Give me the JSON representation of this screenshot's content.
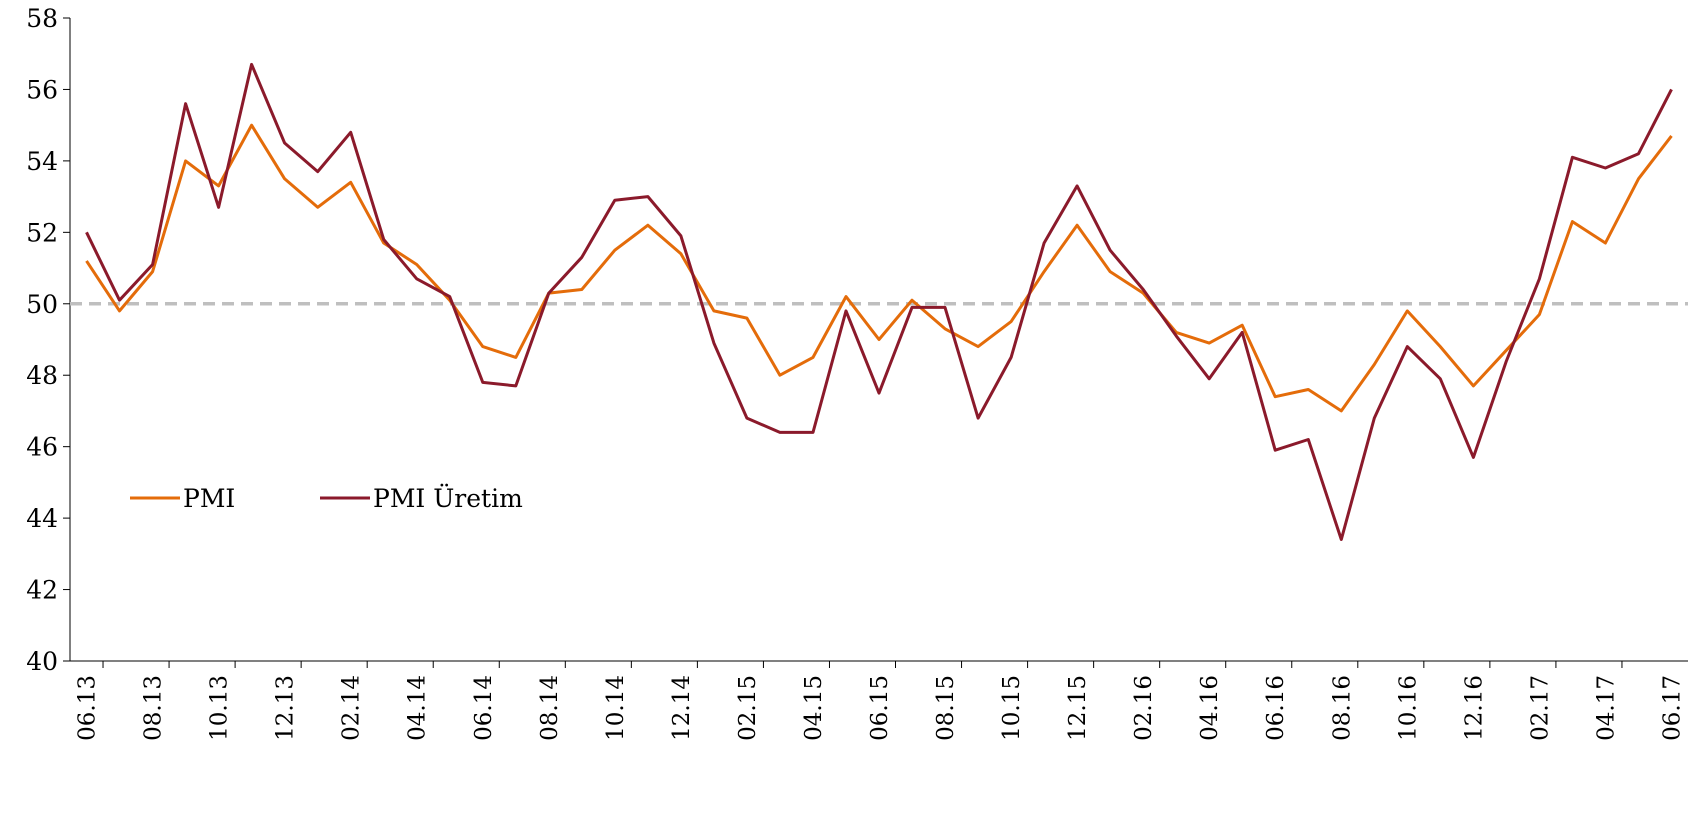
{
  "chart_data": {
    "type": "line",
    "title": "",
    "xlabel": "",
    "ylabel": "",
    "ylim": [
      40,
      58
    ],
    "yticks": [
      40,
      42,
      44,
      46,
      48,
      50,
      52,
      54,
      56,
      58
    ],
    "x": [
      "06.13",
      "07.13",
      "08.13",
      "09.13",
      "10.13",
      "11.13",
      "12.13",
      "01.14",
      "02.14",
      "03.14",
      "04.14",
      "05.14",
      "06.14",
      "07.14",
      "08.14",
      "09.14",
      "10.14",
      "11.14",
      "12.14",
      "01.15",
      "02.15",
      "03.15",
      "04.15",
      "05.15",
      "06.15",
      "07.15",
      "08.15",
      "09.15",
      "10.15",
      "11.15",
      "12.15",
      "01.16",
      "02.16",
      "03.16",
      "04.16",
      "05.16",
      "06.16",
      "07.16",
      "08.16",
      "09.16",
      "10.16",
      "11.16",
      "12.16",
      "01.17",
      "02.17",
      "03.17",
      "04.17",
      "05.17",
      "06.17"
    ],
    "xtick_labels": [
      "06.13",
      "08.13",
      "10.13",
      "12.13",
      "02.14",
      "04.14",
      "06.14",
      "08.14",
      "10.14",
      "12.14",
      "02.15",
      "04.15",
      "06.15",
      "08.15",
      "10.15",
      "12.15",
      "02.16",
      "04.16",
      "06.16",
      "08.16",
      "10.16",
      "12.16",
      "02.17",
      "04.17",
      "06.17"
    ],
    "reference_line": {
      "y": 50,
      "style": "dashed",
      "color": "#bfbfbf"
    },
    "grid": false,
    "legend_position": "lower-left",
    "series": [
      {
        "name": "PMI",
        "color": "#e46c0a",
        "values": [
          51.2,
          49.8,
          50.9,
          54.0,
          53.3,
          55.0,
          53.5,
          52.7,
          53.4,
          51.7,
          51.1,
          50.1,
          48.8,
          48.5,
          50.3,
          50.4,
          51.5,
          52.2,
          51.4,
          49.8,
          49.6,
          48.0,
          48.5,
          50.2,
          49.0,
          50.1,
          49.3,
          48.8,
          49.5,
          50.9,
          52.2,
          50.9,
          50.3,
          49.2,
          48.9,
          49.4,
          47.4,
          47.6,
          47.0,
          48.3,
          49.8,
          48.8,
          47.7,
          48.7,
          49.7,
          52.3,
          51.7,
          53.5,
          54.7
        ]
      },
      {
        "name": "PMI Üretim",
        "color": "#8b1a2b",
        "values": [
          52.0,
          50.1,
          51.1,
          55.6,
          52.7,
          56.7,
          54.5,
          53.7,
          54.8,
          51.8,
          50.7,
          50.2,
          47.8,
          47.7,
          50.3,
          51.3,
          52.9,
          53.0,
          51.9,
          48.9,
          46.8,
          46.4,
          46.4,
          49.8,
          47.5,
          49.9,
          49.9,
          46.8,
          48.5,
          51.7,
          53.3,
          51.5,
          50.4,
          49.1,
          47.9,
          49.2,
          45.9,
          46.2,
          43.4,
          46.8,
          48.8,
          47.9,
          45.7,
          48.4,
          50.7,
          54.1,
          53.8,
          54.2,
          56.0
        ]
      }
    ]
  }
}
